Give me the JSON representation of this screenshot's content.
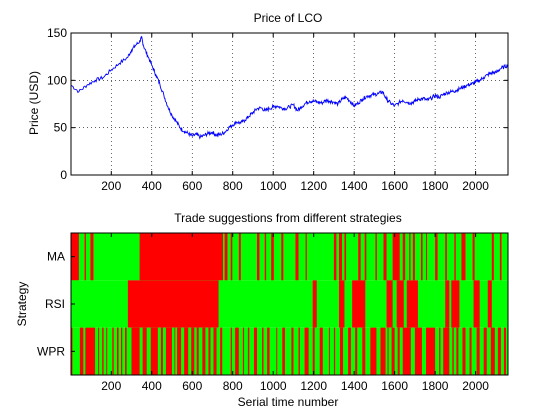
{
  "chart_data": [
    {
      "type": "line",
      "title": "Price of LCO",
      "xlabel": "",
      "ylabel": "Price (USD)",
      "xlim": [
        1,
        2160
      ],
      "ylim": [
        0,
        150
      ],
      "xticks": [
        200,
        400,
        600,
        800,
        1000,
        1200,
        1400,
        1600,
        1800,
        2000
      ],
      "yticks": [
        0,
        50,
        100,
        150
      ],
      "grid": true,
      "color": "#0000ff",
      "series": [
        {
          "x": [
            1,
            40,
            80,
            120,
            160,
            200,
            240,
            280,
            300,
            320,
            340,
            350,
            360,
            380,
            400,
            420,
            440,
            460,
            480,
            500,
            520,
            540,
            560,
            580,
            600,
            620,
            640,
            660,
            680,
            700,
            720,
            740,
            760,
            780,
            800,
            820,
            840,
            860,
            880,
            900,
            920,
            940,
            960,
            980,
            1000,
            1020,
            1040,
            1060,
            1080,
            1100,
            1120,
            1140,
            1160,
            1180,
            1200,
            1220,
            1240,
            1260,
            1280,
            1300,
            1320,
            1340,
            1360,
            1380,
            1400,
            1420,
            1440,
            1460,
            1480,
            1500,
            1520,
            1540,
            1560,
            1580,
            1600,
            1620,
            1640,
            1660,
            1680,
            1700,
            1720,
            1740,
            1760,
            1780,
            1800,
            1820,
            1840,
            1860,
            1880,
            1900,
            1920,
            1940,
            1960,
            1980,
            2000,
            2020,
            2040,
            2060,
            2080,
            2100,
            2120,
            2140,
            2160
          ],
          "y": [
            95,
            88,
            95,
            100,
            103,
            111,
            118,
            124,
            132,
            137,
            141,
            145,
            136,
            126,
            116,
            106,
            96,
            84,
            72,
            63,
            57,
            50,
            46,
            44,
            41,
            43,
            40,
            42,
            44,
            45,
            42,
            43,
            45,
            50,
            53,
            56,
            55,
            58,
            62,
            66,
            70,
            71,
            68,
            70,
            72,
            73,
            71,
            70,
            72,
            74,
            68,
            72,
            76,
            78,
            78,
            77,
            76,
            79,
            78,
            77,
            75,
            80,
            82,
            78,
            73,
            76,
            80,
            83,
            84,
            85,
            86,
            88,
            80,
            76,
            73,
            76,
            79,
            77,
            76,
            78,
            80,
            81,
            79,
            81,
            84,
            82,
            85,
            87,
            88,
            89,
            91,
            93,
            95,
            96,
            98,
            100,
            103,
            106,
            108,
            108,
            112,
            114,
            116
          ]
        }
      ]
    },
    {
      "type": "heatmap",
      "title": "Trade suggestions from different strategies",
      "xlabel": "Serial time number",
      "ylabel": "Strategy",
      "xlim": [
        1,
        2160
      ],
      "xticks": [
        200,
        400,
        600,
        800,
        1000,
        1200,
        1400,
        1600,
        1800,
        2000
      ],
      "rows": [
        "MA",
        "RSI",
        "WPR"
      ],
      "colors": {
        "buy": "#00ff00",
        "sell": "#ff0000"
      },
      "series": [
        {
          "name": "MA",
          "red_intervals": [
            [
              1,
              40
            ],
            [
              68,
              75
            ],
            [
              97,
              112
            ],
            [
              340,
              752
            ],
            [
              760,
              774
            ],
            [
              790,
              798
            ],
            [
              830,
              840
            ],
            [
              920,
              932
            ],
            [
              958,
              965
            ],
            [
              990,
              1003
            ],
            [
              1040,
              1050
            ],
            [
              1110,
              1125
            ],
            [
              1160,
              1166
            ],
            [
              1300,
              1312
            ],
            [
              1325,
              1340
            ],
            [
              1352,
              1360
            ],
            [
              1420,
              1432
            ],
            [
              1452,
              1460
            ],
            [
              1505,
              1512
            ],
            [
              1545,
              1560
            ],
            [
              1590,
              1625
            ],
            [
              1640,
              1652
            ],
            [
              1672,
              1678
            ],
            [
              1690,
              1700
            ],
            [
              1730,
              1738
            ],
            [
              1755,
              1760
            ],
            [
              1800,
              1812
            ],
            [
              1850,
              1858
            ],
            [
              1895,
              1902
            ],
            [
              1930,
              1950
            ],
            [
              1985,
              1995
            ],
            [
              2080,
              2090
            ],
            [
              2120,
              2128
            ]
          ]
        },
        {
          "name": "RSI",
          "red_intervals": [
            [
              282,
              730
            ],
            [
              1195,
              1215
            ],
            [
              1325,
              1352
            ],
            [
              1390,
              1455
            ],
            [
              1560,
              1590
            ],
            [
              1610,
              1645
            ],
            [
              1660,
              1715
            ],
            [
              1850,
              1870
            ],
            [
              1880,
              1920
            ],
            [
              1990,
              2020
            ],
            [
              2060,
              2080
            ]
          ]
        },
        {
          "name": "WPR",
          "red_intervals": [
            [
              1,
              8
            ],
            [
              45,
              62
            ],
            [
              72,
              120
            ],
            [
              135,
              140
            ],
            [
              155,
              162
            ],
            [
              175,
              180
            ],
            [
              205,
              212
            ],
            [
              228,
              236
            ],
            [
              248,
              254
            ],
            [
              268,
              276
            ],
            [
              300,
              340
            ],
            [
              355,
              375
            ],
            [
              395,
              430
            ],
            [
              445,
              455
            ],
            [
              470,
              500
            ],
            [
              512,
              516
            ],
            [
              525,
              545
            ],
            [
              560,
              580
            ],
            [
              595,
              610
            ],
            [
              622,
              632
            ],
            [
              650,
              665
            ],
            [
              680,
              690
            ],
            [
              705,
              720
            ],
            [
              738,
              748
            ],
            [
              790,
              796
            ],
            [
              812,
              830
            ],
            [
              850,
              856
            ],
            [
              875,
              882
            ],
            [
              905,
              920
            ],
            [
              945,
              952
            ],
            [
              970,
              982
            ],
            [
              1015,
              1020
            ],
            [
              1045,
              1058
            ],
            [
              1090,
              1100
            ],
            [
              1125,
              1132
            ],
            [
              1155,
              1175
            ],
            [
              1195,
              1205
            ],
            [
              1230,
              1245
            ],
            [
              1275,
              1280
            ],
            [
              1300,
              1306
            ],
            [
              1330,
              1345
            ],
            [
              1370,
              1384
            ],
            [
              1405,
              1415
            ],
            [
              1440,
              1455
            ],
            [
              1480,
              1510
            ],
            [
              1530,
              1555
            ],
            [
              1565,
              1570
            ],
            [
              1585,
              1600
            ],
            [
              1615,
              1625
            ],
            [
              1640,
              1680
            ],
            [
              1700,
              1735
            ],
            [
              1755,
              1800
            ],
            [
              1820,
              1826
            ],
            [
              1840,
              1870
            ],
            [
              1885,
              1892
            ],
            [
              1905,
              1915
            ],
            [
              1935,
              1950
            ],
            [
              1970,
              1980
            ],
            [
              2005,
              2020
            ],
            [
              2040,
              2055
            ],
            [
              2075,
              2095
            ],
            [
              2110,
              2125
            ],
            [
              2140,
              2150
            ]
          ]
        }
      ]
    }
  ]
}
